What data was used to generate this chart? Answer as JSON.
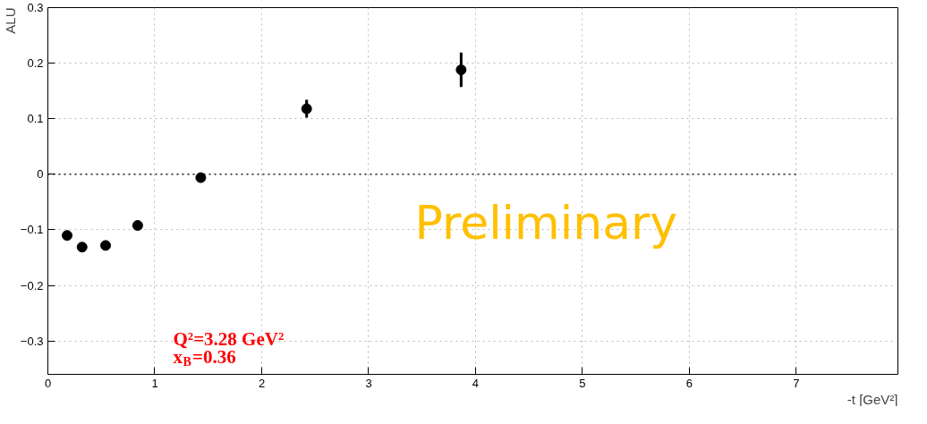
{
  "chart_data": {
    "type": "scatter",
    "xlabel": "-t [GeV²]",
    "ylabel": "ALU",
    "x": [
      0.18,
      0.32,
      0.54,
      0.84,
      1.43,
      2.42,
      3.865
    ],
    "series": [
      {
        "color": "#000000",
        "values": [
          -0.11,
          -0.131,
          -0.128,
          -0.092,
          -0.006,
          0.118,
          0.188
        ],
        "errors": [
          null,
          null,
          null,
          null,
          null,
          0.016,
          0.031
        ]
      }
    ],
    "xlim": [
      0,
      7.95
    ],
    "ylim": [
      -0.36,
      0.3
    ],
    "xticks": [
      0,
      1,
      2,
      3,
      4,
      5,
      6,
      7
    ],
    "yticks": [
      -0.3,
      -0.2,
      -0.1,
      0,
      0.1,
      0.2,
      0.3
    ],
    "grid": true,
    "marker": "circle",
    "ref_lines": [
      {
        "axis": "y",
        "value": 0,
        "color": "#000000",
        "line_style": "dotted"
      }
    ],
    "annotations": [
      "Preliminary",
      "Q²=3.28 GeV²",
      "x$_{B}$=0.36"
    ]
  }
}
